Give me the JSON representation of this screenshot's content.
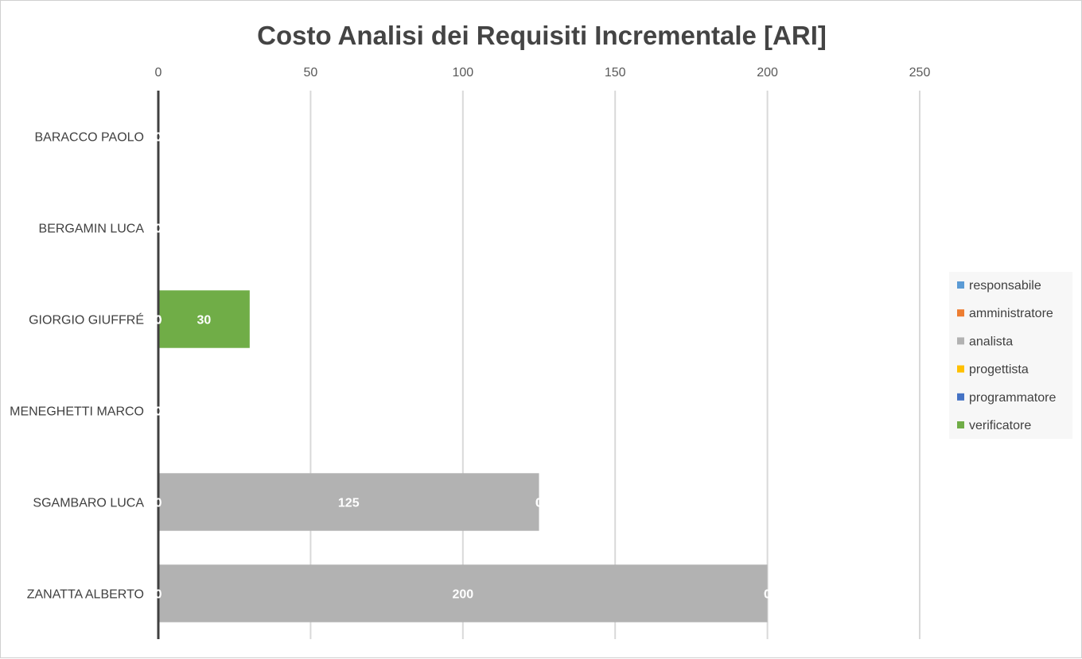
{
  "chart_data": {
    "type": "bar",
    "orientation": "horizontal",
    "stacked": true,
    "title": "Costo Analisi dei Requisiti Incrementale [ARI]",
    "xlabel": "",
    "ylabel": "",
    "xlim": [
      0,
      250
    ],
    "x_ticks": [
      0,
      50,
      100,
      150,
      200,
      250
    ],
    "x_axis_position": "top",
    "grid": true,
    "legend_position": "right",
    "categories": [
      "BARACCO PAOLO",
      "BERGAMIN LUCA",
      "GIORGIO GIUFFRÉ",
      "MENEGHETTI MARCO",
      "SGAMBARO LUCA",
      "ZANATTA ALBERTO"
    ],
    "series": [
      {
        "name": "responsabile",
        "color": "#5b9bd5",
        "values": [
          0,
          0,
          0,
          0,
          0,
          0
        ]
      },
      {
        "name": "amministratore",
        "color": "#ed7d31",
        "values": [
          0,
          0,
          0,
          0,
          0,
          0
        ]
      },
      {
        "name": "analista",
        "color": "#b2b2b2",
        "values": [
          0,
          0,
          0,
          0,
          125,
          200
        ]
      },
      {
        "name": "progettista",
        "color": "#ffc000",
        "values": [
          0,
          0,
          0,
          0,
          0,
          0
        ]
      },
      {
        "name": "programmatore",
        "color": "#4472c4",
        "values": [
          0,
          0,
          0,
          0,
          0,
          0
        ]
      },
      {
        "name": "verificatore",
        "color": "#70ad47",
        "values": [
          0,
          0,
          30,
          0,
          0,
          0
        ]
      }
    ]
  }
}
